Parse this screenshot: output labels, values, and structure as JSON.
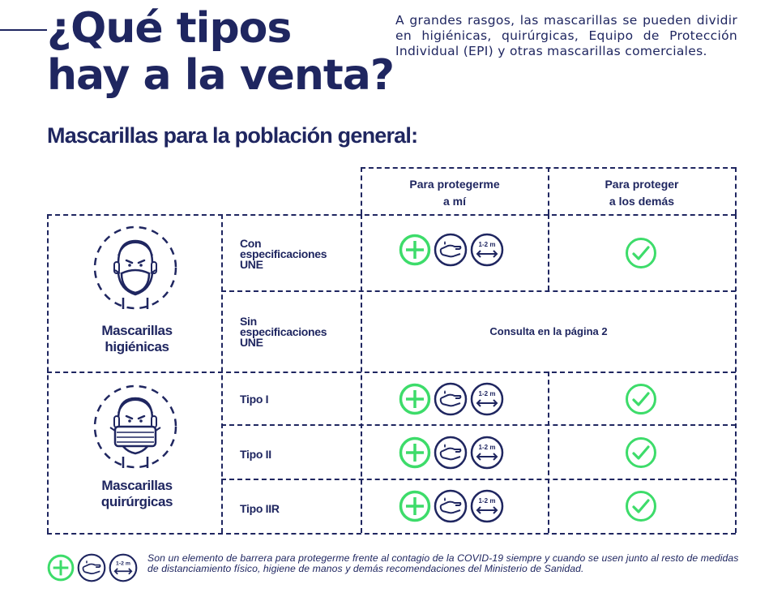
{
  "header": {
    "title_line1": "¿Qué tipos",
    "title_line2": "hay a la venta?",
    "intro": "A grandes rasgos, las mascarillas se pueden dividir en higiénicas, quirúrgicas, Equipo de Protección Individual (EPI) y otras mascarillas comerciales."
  },
  "section_title": "Mascarillas para la población general:",
  "table": {
    "col_headers": [
      {
        "line1": "Para protegerme",
        "line2": "a mí"
      },
      {
        "line1": "Para proteger",
        "line2": "a los demás"
      }
    ],
    "categories": [
      {
        "line1": "Mascarillas",
        "line2": "higiénicas"
      },
      {
        "line1": "Mascarillas",
        "line2": "quirúrgicas"
      }
    ],
    "rows": [
      {
        "lines": [
          "Con",
          "especificaciones",
          "UNE"
        ],
        "me": "icons",
        "others": "check"
      },
      {
        "lines": [
          "Sin",
          "especificaciones",
          "UNE"
        ],
        "merged_text": "Consulta en la página 2"
      },
      {
        "lines": [
          "Tipo I"
        ],
        "me": "icons",
        "others": "check"
      },
      {
        "lines": [
          "Tipo II"
        ],
        "me": "icons",
        "others": "check"
      },
      {
        "lines": [
          "Tipo IIR"
        ],
        "me": "icons",
        "others": "check"
      }
    ],
    "distance_label": "1-2 m"
  },
  "footnote": "Son un elemento de barrera para protegerme frente al contagio de la COVID-19 siempre y cuando se usen junto al resto de medidas de distanciamiento físico, higiene de manos y demás recomendaciones del Ministerio de Sanidad.",
  "colors": {
    "navy": "#1f2660",
    "green": "#3ddc6a"
  },
  "icon_names": [
    "plus-circle-icon",
    "hand-wash-icon",
    "distance-icon",
    "check-circle-icon",
    "face-mask-icon",
    "surgical-mask-icon"
  ]
}
